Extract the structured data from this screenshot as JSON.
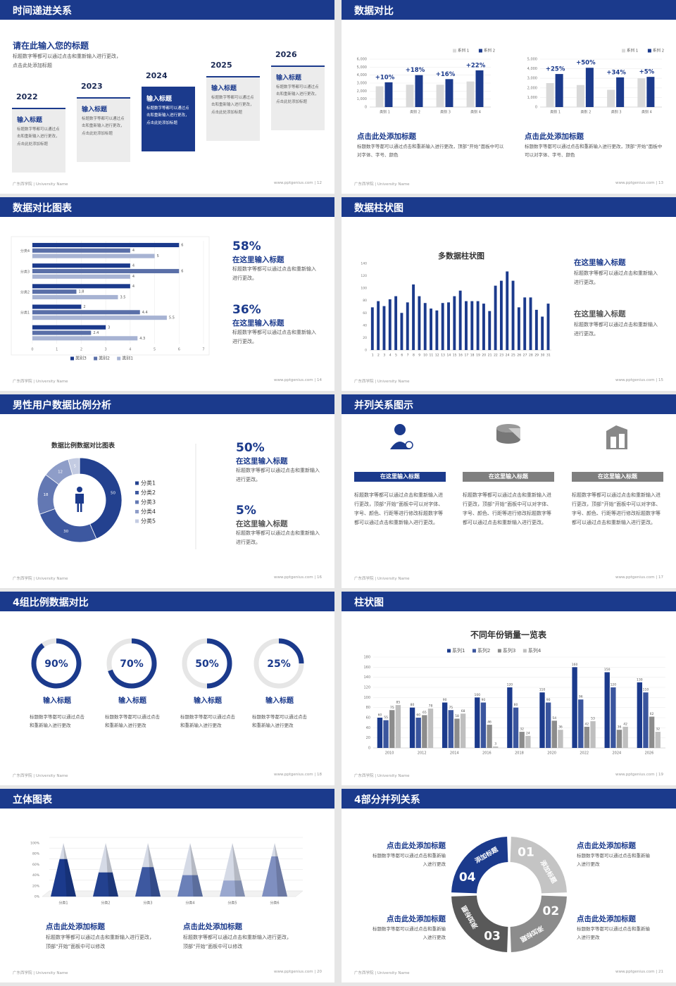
{
  "footer_left": "广东西学院 | University Name",
  "slides": [
    {
      "title": "时间递进关系",
      "footer": "www.pptgenius.com | 12",
      "heading": "请在此输入您的标题",
      "text": "标题数字等都可以通过点击和重新输入进行更改，点击此处添加标题",
      "steps": [
        {
          "year": "2022",
          "title": "输入标题",
          "text": "标题数字等都可以通过点击和重新输入进行更改，点击此处添加标题"
        },
        {
          "year": "2023",
          "title": "输入标题",
          "text": "标题数字等都可以通过点击和重新输入进行更改，点击此处添加标题"
        },
        {
          "year": "2024",
          "title": "输入标题",
          "text": "标题数字等都可以通过点击和重新输入进行更改，点击此处添加标题"
        },
        {
          "year": "2025",
          "title": "输入标题",
          "text": "标题数字等都可以通过点击和重新输入进行更改，点击此处添加标题"
        },
        {
          "year": "2026",
          "title": "输入标题",
          "text": "标题数字等都可以通过点击和重新输入进行更改，点击此处添加标题"
        }
      ]
    },
    {
      "title": "数据对比",
      "footer": "www.pptgenius.com | 13",
      "blocks": [
        {
          "title": "点击此处添加标题",
          "text": "标题数字等都可以通过点击和重新输入进行更改，顶部“开始”面板中可以对字体、字号、颜色"
        },
        {
          "title": "点击此处添加标题",
          "text": "标题数字等都可以通过点击和重新输入进行更改，顶部“开始”面板中可以对字体、字号、颜色"
        }
      ]
    },
    {
      "title": "数据对比图表",
      "footer": "www.pptgenius.com | 14",
      "blocks": [
        {
          "value": "58%",
          "title": "在这里输入标题",
          "text": "标题数字等都可以通过点击和重新输入进行更改。"
        },
        {
          "value": "36%",
          "title": "在这里输入标题",
          "text": "标题数字等都可以通过点击和重新输入进行更改。"
        }
      ]
    },
    {
      "title": "数据柱状图",
      "footer": "www.pptgenius.com | 15",
      "blocks": [
        {
          "title": "在这里输入标题",
          "text": "标题数字等都可以通过点击和重新输入进行更改。"
        },
        {
          "title": "在这里输入标题",
          "text": "标题数字等都可以通过点击和重新输入进行更改。"
        }
      ]
    },
    {
      "title": "男性用户数据比例分析",
      "footer": "www.pptgenius.com | 16",
      "blocks": [
        {
          "value": "50%",
          "title": "在这里输入标题",
          "text": "标题数字等都可以通过点击和重新输入进行更改。"
        },
        {
          "value": "5%",
          "title": "在这里输入标题",
          "text": "标题数字等都可以通过点击和重新输入进行更改。"
        }
      ]
    },
    {
      "title": "并列关系图示",
      "footer": "www.pptgenius.com | 17",
      "blocks": [
        {
          "title": "在这里输入标题",
          "text": "标题数字等都可以通过点击和重新输入进行更改，顶部“开始”面板中可以对字体、字号、颜色、行距等进行修改标题数字等都可以通过点击和重新输入进行更改。"
        },
        {
          "title": "在这里输入标题",
          "text": "标题数字等都可以通过点击和重新输入进行更改，顶部“开始”面板中可以对字体、字号、颜色、行距等进行修改标题数字等都可以通过点击和重新输入进行更改。"
        },
        {
          "title": "在这里输入标题",
          "text": "标题数字等都可以通过点击和重新输入进行更改，顶部“开始”面板中可以对字体、字号、颜色、行距等进行修改标题数字等都可以通过点击和重新输入进行更改。"
        }
      ]
    },
    {
      "title": "4组比例数据对比",
      "footer": "www.pptgenius.com | 18",
      "blocks": [
        {
          "title": "输入标题",
          "text": "标题数字等都可以通过点击和重新输入进行更改"
        },
        {
          "title": "输入标题",
          "text": "标题数字等都可以通过点击和重新输入进行更改"
        },
        {
          "title": "输入标题",
          "text": "标题数字等都可以通过点击和重新输入进行更改"
        },
        {
          "title": "输入标题",
          "text": "标题数字等都可以通过点击和重新输入进行更改"
        }
      ]
    },
    {
      "title": "柱状图",
      "footer": "www.pptgenius.com | 19"
    },
    {
      "title": "立体图表",
      "footer": "www.pptgenius.com | 20",
      "blocks": [
        {
          "title": "点击此处添加标题",
          "text": "标题数字等都可以通过点击和重新输入进行更改，顶部“开始”面板中可以修改"
        },
        {
          "title": "点击此处添加标题",
          "text": "标题数字等都可以通过点击和重新输入进行更改，顶部“开始”面板中可以修改"
        }
      ]
    },
    {
      "title": "4部分并列关系",
      "footer": "www.pptgenius.com | 21",
      "blocks": [
        {
          "title": "点击此处添加标题",
          "text": "标题数字等都可以通过点击和重新输入进行更改"
        },
        {
          "title": "点击此处添加标题",
          "text": "标题数字等都可以通过点击和重新输入进行更改"
        },
        {
          "title": "点击此处添加标题",
          "text": "标题数字等都可以通过点击和重新输入进行更改"
        },
        {
          "title": "点击此处添加标题",
          "text": "标题数字等都可以通过点击和重新输入进行更改"
        }
      ],
      "segments": [
        {
          "number": "01",
          "label": "添加标题"
        },
        {
          "number": "02",
          "label": "添加标题"
        },
        {
          "number": "03",
          "label": "添加标题"
        },
        {
          "number": "04",
          "label": "添加标题"
        }
      ]
    }
  ],
  "chart_data": [
    {
      "type": "bar",
      "categories": [
        "类别 1",
        "类别 2",
        "类别 3",
        "类别 4"
      ],
      "series": [
        {
          "name": "系列 1",
          "color": "#d9d9d9",
          "values": [
            2600,
            2800,
            2800,
            3200
          ]
        },
        {
          "name": "系列 2",
          "color": "#1b3a8c",
          "values": [
            3100,
            4000,
            3500,
            4600
          ]
        }
      ],
      "annotations": [
        "+10%",
        "+18%",
        "+16%",
        "+22%"
      ],
      "ylim": [
        0,
        6000
      ],
      "yticks": [
        0,
        {
          "value": 1000,
          "label": "1,000"
        },
        {
          "value": 2000,
          "label": "2,000"
        },
        {
          "value": 3000,
          "label": "3,000"
        },
        {
          "value": 4000,
          "label": "4,000"
        },
        {
          "value": 5000,
          "label": "5,000"
        },
        {
          "value": 6000,
          "label": "6,000"
        }
      ],
      "grid": true,
      "legend": "top-right"
    },
    {
      "type": "bar",
      "categories": [
        "类别 1",
        "类别 2",
        "类别 3",
        "类别 4"
      ],
      "series": [
        {
          "name": "系列 1",
          "color": "#d9d9d9",
          "values": [
            2500,
            2300,
            1800,
            3000
          ]
        },
        {
          "name": "系列 2",
          "color": "#1b3a8c",
          "values": [
            3450,
            4100,
            3100,
            3150
          ]
        }
      ],
      "annotations": [
        "+25%",
        "+50%",
        "+34%",
        "+5%"
      ],
      "ylim": [
        0,
        5000
      ],
      "yticks": [
        0,
        {
          "value": 1000,
          "label": "1,000"
        },
        {
          "value": 2000,
          "label": "2,000"
        },
        {
          "value": 3000,
          "label": "3,000"
        },
        {
          "value": 4000,
          "label": "4,000"
        },
        {
          "value": 5000,
          "label": "5,000"
        }
      ],
      "grid": true,
      "legend": "top-right"
    },
    {
      "type": "hbar",
      "categories": [
        null,
        "分类1",
        "分类2",
        "分类3",
        "分类4"
      ],
      "series": [
        {
          "name": "类别3",
          "color": "#1b3a8c",
          "values": [
            3,
            2,
            4,
            4,
            6
          ]
        },
        {
          "name": "类别2",
          "color": "#5a6fa8",
          "values": [
            2.4,
            4.4,
            1.8,
            6,
            4
          ]
        },
        {
          "name": "类别1",
          "color": "#a7b3d3",
          "values": [
            4.3,
            5.5,
            3.5,
            4,
            5
          ]
        }
      ],
      "xlim": [
        0,
        7
      ],
      "xticks": [
        0,
        1,
        2,
        3,
        4,
        5,
        6,
        7
      ],
      "grid": true,
      "data_labels": true,
      "legend": "bottom"
    },
    {
      "type": "bar",
      "title": "多数据柱状图",
      "categories": [
        "1",
        "2",
        "3",
        "4",
        "5",
        "6",
        "7",
        "8",
        "9",
        "10",
        "11",
        "12",
        "13",
        "14",
        "15",
        "16",
        "17",
        "18",
        "19",
        "20",
        "21",
        "22",
        "23",
        "24",
        "25",
        "26",
        "27",
        "28",
        "29",
        "30",
        "31"
      ],
      "values": [
        69,
        79,
        71,
        82,
        87,
        60,
        77,
        106,
        87,
        76,
        67,
        64,
        76,
        77,
        87,
        96,
        79,
        79,
        79,
        75,
        63,
        104,
        112,
        127,
        112,
        69,
        85,
        85,
        65,
        54,
        75
      ],
      "color": "#1b3a8c",
      "ylim": [
        0,
        140
      ],
      "yticks": [
        0,
        20,
        40,
        60,
        80,
        100,
        120,
        140
      ],
      "grid": false
    },
    {
      "type": "donut",
      "title": "数据比例数据对比图表",
      "categories": [
        "分类1",
        "分类2",
        "分类3",
        "分类4",
        "分类5"
      ],
      "values": [
        50,
        30,
        18,
        12,
        5
      ],
      "colors": [
        "#23418f",
        "#3d58a0",
        "#6378b3",
        "#8e9dc8",
        "#c3cbe2"
      ],
      "legend": "right"
    },
    {
      "type": "ring",
      "values": [
        90,
        70,
        50,
        25
      ],
      "value_labels": [
        "90%",
        "70%",
        "50%",
        "25%"
      ],
      "color": "#1b3a8c"
    },
    {
      "type": "bar",
      "title": "不同年份销量一览表",
      "categories": [
        "2010",
        "2012",
        "2014",
        "2016",
        "2018",
        "2020",
        "2022",
        "2024",
        "2026"
      ],
      "series": [
        {
          "name": "系列1",
          "color": "#1b3a8c",
          "values": [
            60,
            80,
            90,
            100,
            120,
            110,
            160,
            150,
            130
          ]
        },
        {
          "name": "系列2",
          "color": "#3a559e",
          "values": [
            55,
            60,
            75,
            90,
            80,
            90,
            96,
            120,
            110
          ]
        },
        {
          "name": "系列3",
          "color": "#8c8c8c",
          "values": [
            75,
            65,
            58,
            46,
            32,
            54,
            42,
            36,
            62
          ]
        },
        {
          "name": "系列4",
          "color": "#bfbfbf",
          "values": [
            85,
            78,
            68,
            3,
            24,
            36,
            53,
            42,
            32
          ]
        }
      ],
      "ylim": [
        0,
        180
      ],
      "yticks": [
        0,
        20,
        40,
        60,
        80,
        100,
        120,
        140,
        160,
        180
      ],
      "grid": true,
      "data_labels": true,
      "legend": "top"
    },
    {
      "type": "pyramid",
      "categories": [
        "分类1",
        "分类2",
        "分类3",
        "分类4",
        "分类5",
        "分类6"
      ],
      "values": [
        70,
        45,
        55,
        40,
        30,
        75
      ],
      "colors": [
        "#1b3a8c",
        "#23418f",
        "#3d58a0",
        "#6b80b8",
        "#9aa8cf",
        "#7f8fc0"
      ],
      "ylim": [
        0,
        100
      ],
      "yticks": [
        {
          "value": 0,
          "label": "0%"
        },
        {
          "value": 20,
          "label": "20%"
        },
        {
          "value": 40,
          "label": "40%"
        },
        {
          "value": 60,
          "label": "60%"
        },
        {
          "value": 80,
          "label": "80%"
        },
        {
          "value": 100,
          "label": "100%"
        }
      ],
      "grid": true
    }
  ]
}
